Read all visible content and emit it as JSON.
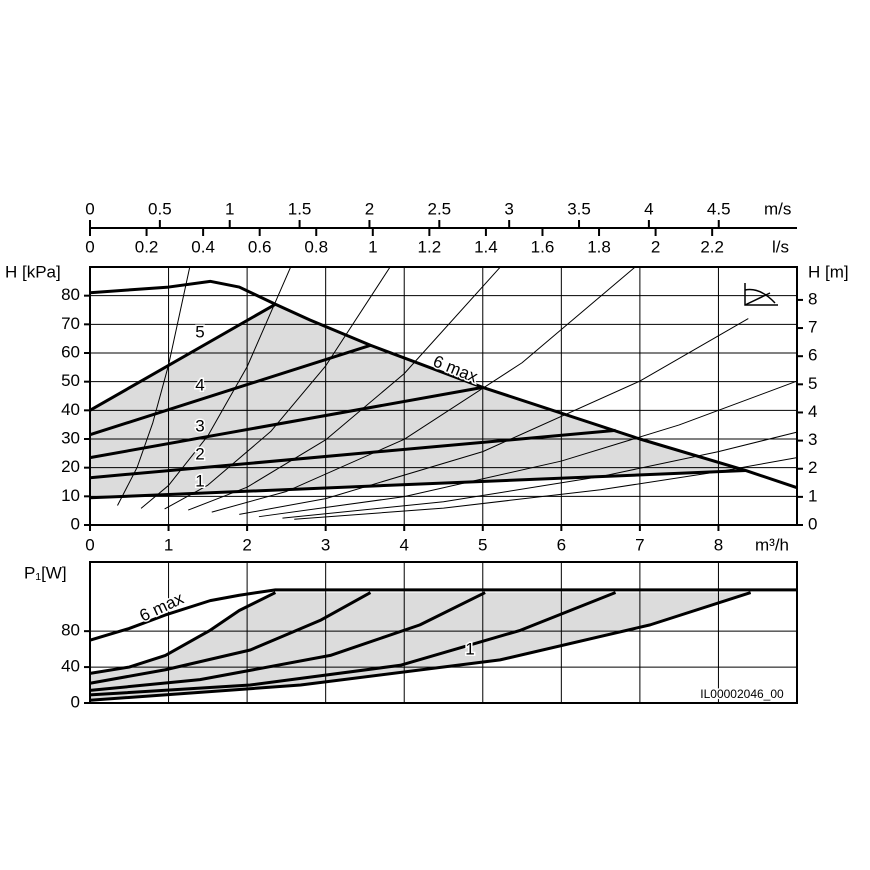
{
  "chart_data": [
    {
      "type": "line",
      "xlabel": "m³/h",
      "ylabel": "H [kPa]",
      "y2label": "H [m]",
      "xlim": [
        0,
        9
      ],
      "xticks": [
        0,
        1,
        2,
        3,
        4,
        5,
        6,
        7,
        8
      ],
      "ylim": [
        0,
        90
      ],
      "yticks": [
        0,
        10,
        20,
        30,
        40,
        50,
        60,
        70,
        80
      ],
      "y2lim": [
        0,
        9.17
      ],
      "y2ticks": [
        0,
        1,
        2,
        3,
        4,
        5,
        6,
        7,
        8
      ],
      "grid": true,
      "area_color": "#dcdcdc",
      "top_axes": [
        {
          "label": "m/s",
          "lim": [
            0,
            5.06
          ],
          "ticks": [
            0,
            0.5,
            1,
            1.5,
            2,
            2.5,
            3,
            3.5,
            4,
            4.5
          ]
        },
        {
          "label": "l/s",
          "lim": [
            0,
            2.5
          ],
          "ticks": [
            0,
            0.2,
            0.4,
            0.6,
            0.8,
            1,
            1.2,
            1.4,
            1.6,
            1.8,
            2,
            2.2
          ]
        }
      ],
      "series": [
        {
          "name": "6 max",
          "color": "#000000",
          "width": 3,
          "x": [
            0,
            0.5,
            1,
            1.53,
            1.9,
            2.36,
            2.8,
            3.57,
            5,
            7,
            8.35,
            9
          ],
          "values": [
            81,
            82,
            83,
            85,
            83,
            77,
            71.5,
            62.7,
            48,
            30,
            19,
            13
          ]
        },
        {
          "name": "5",
          "color": "#000000",
          "width": 3,
          "x": [
            0,
            2.36
          ],
          "values": [
            40,
            77
          ]
        },
        {
          "name": "4",
          "color": "#000000",
          "width": 3,
          "x": [
            0,
            3.57
          ],
          "values": [
            31.5,
            62.7
          ]
        },
        {
          "name": "3",
          "color": "#000000",
          "width": 3,
          "x": [
            0,
            5
          ],
          "values": [
            23.5,
            48
          ]
        },
        {
          "name": "2",
          "color": "#000000",
          "width": 3,
          "x": [
            0,
            6.69
          ],
          "values": [
            16.5,
            33
          ]
        },
        {
          "name": "1",
          "color": "#000000",
          "width": 3,
          "x": [
            0,
            8.35
          ],
          "values": [
            9.5,
            19
          ]
        },
        {
          "color": "#000000",
          "width": 1,
          "x": [
            0.35,
            0.6,
            0.8,
            1.0,
            1.27
          ],
          "values": [
            6.8,
            20.1,
            35.7,
            55.8,
            90
          ]
        },
        {
          "color": "#000000",
          "width": 1,
          "x": [
            0.65,
            1.0,
            1.5,
            2.0,
            2.55
          ],
          "values": [
            5.8,
            13.8,
            31.1,
            55.2,
            89.7
          ]
        },
        {
          "color": "#000000",
          "width": 1,
          "x": [
            0.95,
            1.5,
            2.3,
            3.0,
            3.82
          ],
          "values": [
            5.6,
            13.9,
            32.6,
            55.5,
            90
          ]
        },
        {
          "color": "#000000",
          "width": 1,
          "x": [
            1.25,
            2.0,
            3.0,
            4.0,
            5.22
          ],
          "values": [
            5.2,
            13.2,
            29.7,
            52.8,
            89.9
          ]
        },
        {
          "color": "#000000",
          "width": 1,
          "x": [
            1.55,
            2.5,
            4.0,
            5.5,
            6.94
          ],
          "values": [
            4.5,
            11.7,
            29.9,
            56.6,
            90
          ]
        },
        {
          "color": "#000000",
          "width": 1,
          "x": [
            1.9,
            3.0,
            5.0,
            7.0,
            8.38
          ],
          "values": [
            3.7,
            9.2,
            25.6,
            50.2,
            72
          ]
        },
        {
          "color": "#000000",
          "width": 1,
          "x": [
            2.15,
            4.0,
            6.0,
            7.5,
            9.0
          ],
          "values": [
            2.9,
            9.9,
            22.3,
            34.9,
            50.2
          ]
        },
        {
          "color": "#000000",
          "width": 1,
          "x": [
            2.45,
            4.5,
            6.5,
            8.0,
            9.0
          ],
          "values": [
            2.4,
            8.1,
            16.9,
            25.6,
            32.4
          ]
        },
        {
          "color": "#000000",
          "width": 1,
          "x": [
            2.6,
            4.5,
            6.5,
            8.0,
            9.0
          ],
          "values": [
            2.0,
            5.9,
            12.3,
            18.6,
            23.5
          ]
        }
      ]
    },
    {
      "type": "line",
      "ylabel": "P₁[W]",
      "xlim": [
        0,
        9
      ],
      "ylim": [
        0,
        157
      ],
      "yticks": [
        0,
        40,
        80
      ],
      "grid": true,
      "area_color": "#dcdcdc",
      "note": "IL00002046_00",
      "series": [
        {
          "name": "6 max",
          "color": "#000000",
          "width": 3,
          "x": [
            0,
            0.5,
            0.96,
            1.53,
            1.9,
            2.36,
            9
          ],
          "values": [
            70,
            83,
            98,
            114,
            120,
            126,
            126
          ]
        },
        {
          "color": "#000000",
          "width": 3,
          "x": [
            0,
            0.5,
            0.96,
            1.53,
            1.9,
            2.36
          ],
          "values": [
            33,
            40,
            53,
            81,
            103,
            123
          ]
        },
        {
          "color": "#000000",
          "width": 3,
          "x": [
            0,
            0.96,
            2.04,
            2.93,
            3.57
          ],
          "values": [
            22,
            37,
            59,
            92,
            123
          ]
        },
        {
          "color": "#000000",
          "width": 3,
          "x": [
            0,
            1.4,
            3.06,
            4.2,
            5.03
          ],
          "values": [
            14,
            26,
            53,
            87,
            123
          ]
        },
        {
          "color": "#000000",
          "width": 3,
          "x": [
            0,
            2.04,
            3.95,
            5.48,
            6.69
          ],
          "values": [
            9,
            20,
            42,
            81,
            123
          ]
        },
        {
          "name": "1",
          "color": "#000000",
          "width": 3,
          "x": [
            0,
            2.68,
            5.22,
            7.13,
            8.41
          ],
          "values": [
            3,
            20,
            48,
            87,
            123
          ]
        }
      ]
    }
  ]
}
